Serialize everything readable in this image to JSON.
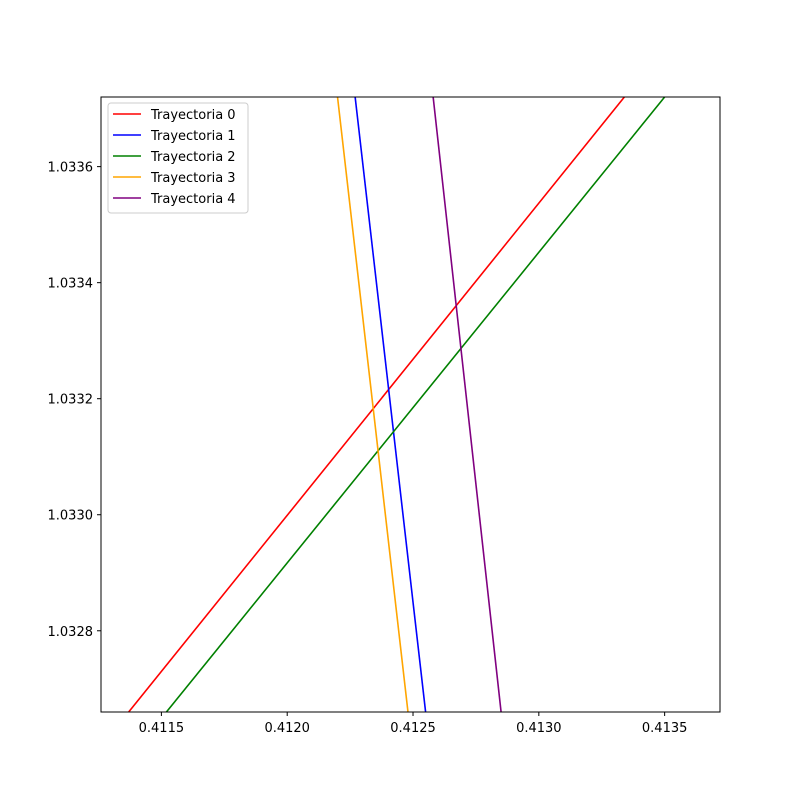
{
  "chart_data": {
    "type": "line",
    "title": "",
    "xlabel": "",
    "ylabel": "",
    "xlim": [
      0.41126,
      0.41372
    ],
    "ylim": [
      1.03266,
      1.03372
    ],
    "xticks": [
      0.4115,
      0.412,
      0.4125,
      0.413,
      0.4135
    ],
    "xtick_labels": [
      "0.4115",
      "0.4120",
      "0.4125",
      "0.4130",
      "0.4135"
    ],
    "yticks": [
      1.0328,
      1.033,
      1.0332,
      1.0334,
      1.0336
    ],
    "ytick_labels": [
      "1.0328",
      "1.0330",
      "1.0332",
      "1.0334",
      "1.0336"
    ],
    "grid": false,
    "legend_position": "upper-left",
    "series": [
      {
        "name": "Trayectoria 0",
        "color": "#ff0000",
        "x": [
          0.41137,
          0.41334
        ],
        "y": [
          1.03266,
          1.03372
        ]
      },
      {
        "name": "Trayectoria 1",
        "color": "#0000ff",
        "x": [
          0.41227,
          0.41255
        ],
        "y": [
          1.03372,
          1.03266
        ]
      },
      {
        "name": "Trayectoria 2",
        "color": "#008000",
        "x": [
          0.41152,
          0.4135
        ],
        "y": [
          1.03266,
          1.03372
        ]
      },
      {
        "name": "Trayectoria 3",
        "color": "#ffa500",
        "x": [
          0.4122,
          0.41248
        ],
        "y": [
          1.03372,
          1.03266
        ]
      },
      {
        "name": "Trayectoria 4",
        "color": "#800080",
        "x": [
          0.41258,
          0.41285
        ],
        "y": [
          1.03372,
          1.03266
        ]
      }
    ]
  }
}
